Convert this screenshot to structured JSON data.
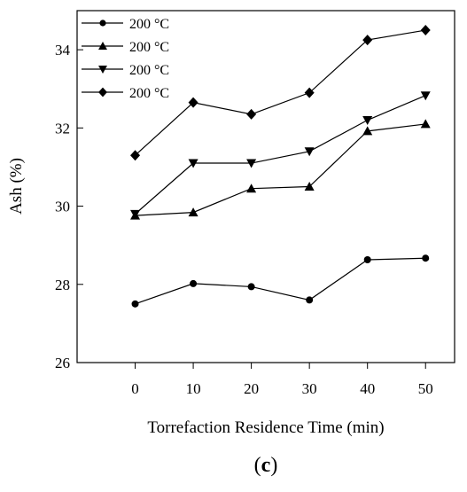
{
  "chart_data": {
    "type": "line",
    "xlabel": "Torrefaction Residence Time (min)",
    "ylabel": "Ash (%)",
    "xlim": [
      -10,
      55
    ],
    "ylim": [
      26,
      35
    ],
    "xticks": [
      0,
      10,
      20,
      30,
      40,
      50
    ],
    "yticks": [
      26,
      28,
      30,
      32,
      34
    ],
    "x": [
      0,
      10,
      20,
      30,
      40,
      50
    ],
    "series": [
      {
        "name": "200 °C",
        "marker": "circle",
        "values": [
          27.5,
          28.02,
          27.94,
          27.6,
          28.63,
          28.67
        ]
      },
      {
        "name": "200 °C",
        "marker": "triangle-up",
        "values": [
          29.76,
          29.84,
          30.45,
          30.5,
          31.92,
          32.1
        ]
      },
      {
        "name": "200 °C",
        "marker": "triangle-down",
        "values": [
          29.8,
          31.1,
          31.1,
          31.4,
          32.2,
          32.83
        ]
      },
      {
        "name": "200 °C",
        "marker": "diamond",
        "values": [
          31.3,
          32.65,
          32.35,
          32.9,
          34.25,
          34.5
        ]
      }
    ],
    "legend_position": "top-left",
    "grid": false,
    "panel_label": {
      "open": "(",
      "letter": "c",
      "close": ")"
    },
    "colors": {
      "line": "#000000",
      "marker": "#000000",
      "axis": "#000000"
    }
  }
}
